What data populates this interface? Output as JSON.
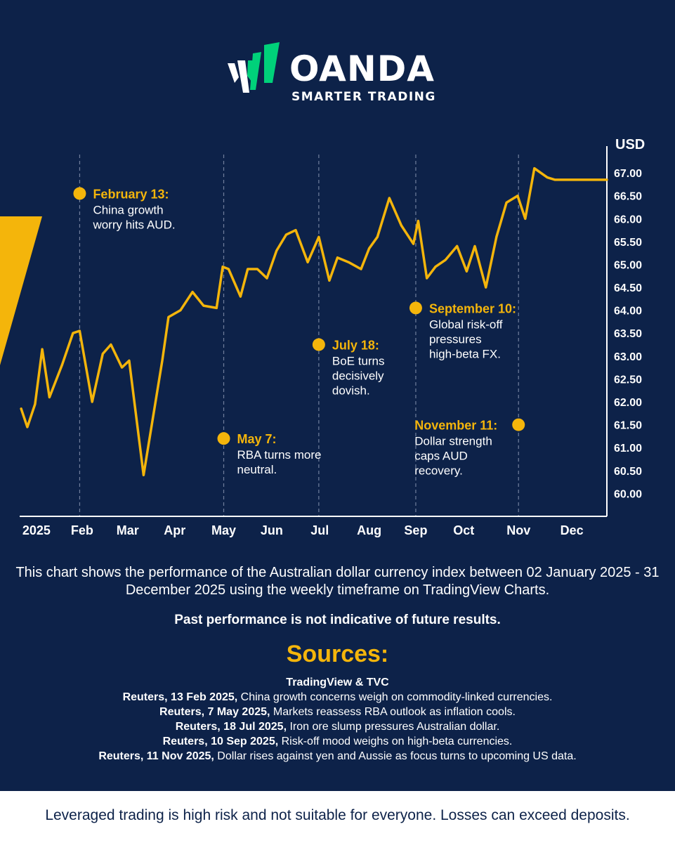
{
  "brand": {
    "name": "OANDA",
    "tagline": "SMARTER TRADING",
    "colors": {
      "background": "#0d2249",
      "accent": "#f4b50b",
      "logo_green": "#00d17a",
      "text": "#ffffff"
    }
  },
  "chart_data": {
    "type": "line",
    "ylabel": "USD",
    "ylim": [
      59.5,
      67.4
    ],
    "yticks": [
      60.0,
      60.5,
      61.0,
      61.5,
      62.0,
      62.5,
      63.0,
      63.5,
      64.0,
      64.5,
      65.0,
      65.5,
      66.0,
      66.5,
      67.0
    ],
    "xlim": [
      0.75,
      12.98
    ],
    "xticks": [
      {
        "label": "2025",
        "pos": 1.1
      },
      {
        "label": "Feb",
        "pos": 2.05
      },
      {
        "label": "Mar",
        "pos": 3.0
      },
      {
        "label": "Apr",
        "pos": 3.98
      },
      {
        "label": "May",
        "pos": 5.0
      },
      {
        "label": "Jun",
        "pos": 6.0
      },
      {
        "label": "Jul",
        "pos": 7.0
      },
      {
        "label": "Aug",
        "pos": 8.03
      },
      {
        "label": "Sep",
        "pos": 9.0
      },
      {
        "label": "Oct",
        "pos": 10.0
      },
      {
        "label": "Nov",
        "pos": 11.14
      },
      {
        "label": "Dec",
        "pos": 12.25
      }
    ],
    "series": [
      {
        "color": "#f4b50b",
        "x": [
          0.78,
          0.91,
          1.07,
          1.22,
          1.37,
          1.63,
          1.86,
          2.0,
          2.26,
          2.48,
          2.65,
          2.88,
          3.03,
          3.33,
          3.72,
          3.85,
          4.1,
          4.35,
          4.58,
          4.85,
          4.98,
          5.1,
          5.35,
          5.5,
          5.7,
          5.9,
          6.1,
          6.3,
          6.5,
          6.75,
          6.98,
          7.2,
          7.37,
          7.6,
          7.86,
          8.03,
          8.2,
          8.45,
          8.7,
          8.95,
          9.05,
          9.23,
          9.41,
          9.62,
          9.86,
          10.06,
          10.23,
          10.46,
          10.68,
          10.89,
          11.12,
          11.28,
          11.47,
          11.74,
          11.9,
          12.15,
          12.4,
          12.6,
          12.8,
          12.9,
          12.98
        ],
        "y": [
          61.85,
          61.45,
          61.95,
          63.15,
          62.1,
          62.8,
          63.5,
          63.55,
          62.0,
          63.05,
          63.25,
          62.75,
          62.9,
          60.4,
          62.9,
          63.85,
          64.0,
          64.4,
          64.1,
          64.05,
          64.95,
          64.9,
          64.3,
          64.9,
          64.9,
          64.7,
          65.3,
          65.65,
          65.75,
          65.05,
          65.6,
          64.65,
          65.15,
          65.05,
          64.9,
          65.35,
          65.6,
          66.45,
          65.85,
          65.45,
          65.95,
          64.7,
          64.95,
          65.1,
          65.4,
          64.85,
          65.4,
          64.5,
          65.6,
          66.35,
          66.5,
          66.0,
          67.1,
          66.9,
          66.85,
          66.85,
          66.85,
          66.85,
          66.85,
          66.85,
          66.85
        ]
      }
    ],
    "annotations": [
      {
        "date_label": "February 13:",
        "text": [
          "China growth",
          "worry hits AUD."
        ],
        "x": 2.0,
        "y": 66.55
      },
      {
        "date_label": "May 7:",
        "text": [
          "RBA turns more",
          "neutral."
        ],
        "x": 5.0,
        "y": 61.2
      },
      {
        "date_label": "July 18:",
        "text": [
          "BoE turns",
          "decisively",
          "dovish."
        ],
        "x": 6.98,
        "y": 63.25
      },
      {
        "date_label": "September 10:",
        "text": [
          "Global risk-off",
          "pressures",
          "high-beta FX."
        ],
        "x": 9.0,
        "y": 64.05
      },
      {
        "date_label": "November 11:",
        "text": [
          "Dollar strength",
          "caps AUD",
          "recovery."
        ],
        "x": 11.14,
        "y": 61.5
      }
    ]
  },
  "description": "This chart shows the performance of the Australian dollar currency index between 02 January 2025 - 31 December 2025 using the weekly timeframe on TradingView Charts.",
  "warning": "Past performance is not indicative of future results.",
  "sources": {
    "title": "Sources:",
    "header": "TradingView & TVC",
    "items": [
      {
        "ref": "Reuters, 13 Feb 2025,",
        "text": " China growth concerns weigh on commodity-linked currencies."
      },
      {
        "ref": "Reuters, 7 May 2025,",
        "text": " Markets reassess RBA outlook as inflation cools."
      },
      {
        "ref": "Reuters, 18 Jul 2025,",
        "text": " Iron ore slump pressures Australian dollar."
      },
      {
        "ref": "Reuters, 10 Sep 2025,",
        "text": " Risk-off mood weighs on high-beta currencies."
      },
      {
        "ref": "Reuters, 11 Nov 2025,",
        "text": " Dollar rises against yen and Aussie as focus turns to upcoming US data."
      }
    ]
  },
  "footer": "Leveraged trading is high risk and not suitable for everyone. Losses can exceed deposits."
}
